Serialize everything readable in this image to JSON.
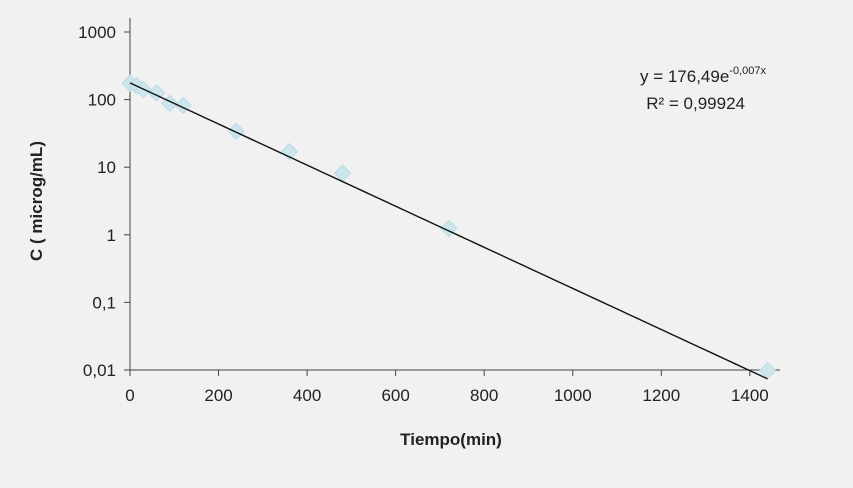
{
  "chart_data": {
    "type": "scatter",
    "title": "",
    "xlabel": "Tiempo(min)",
    "ylabel": "C ( microg/mL)",
    "xlim": [
      0,
      1450
    ],
    "ylim": [
      0.01,
      1000
    ],
    "y_scale": "log",
    "x_ticks": [
      0,
      200,
      400,
      600,
      800,
      1000,
      1200,
      1400
    ],
    "x_tick_labels": [
      "0",
      "200",
      "400",
      "600",
      "800",
      "1000",
      "1200",
      "1400"
    ],
    "y_ticks": [
      0.01,
      0.1,
      1,
      10,
      100,
      1000
    ],
    "y_tick_labels": [
      "0,01",
      "0,1",
      "1",
      "10",
      "100",
      "1000"
    ],
    "grid": false,
    "series": [
      {
        "marker": "diamond",
        "color": "#cde6ee",
        "points": [
          {
            "x": 0,
            "y": 175
          },
          {
            "x": 15,
            "y": 160
          },
          {
            "x": 30,
            "y": 140
          },
          {
            "x": 60,
            "y": 125
          },
          {
            "x": 90,
            "y": 88
          },
          {
            "x": 120,
            "y": 82
          },
          {
            "x": 240,
            "y": 34
          },
          {
            "x": 360,
            "y": 17
          },
          {
            "x": 480,
            "y": 8.2
          },
          {
            "x": 720,
            "y": 1.25
          },
          {
            "x": 1440,
            "y": 0.0098
          }
        ]
      }
    ],
    "trendline": {
      "type": "exponential",
      "a": 176.49,
      "b": -0.007,
      "x_range": [
        0,
        1440
      ],
      "color": "#111111"
    },
    "annotations": {
      "equation_prefix": "y = 176,49e",
      "equation_exponent": "-0,007x",
      "r_squared": "R² = 0,99924"
    }
  }
}
